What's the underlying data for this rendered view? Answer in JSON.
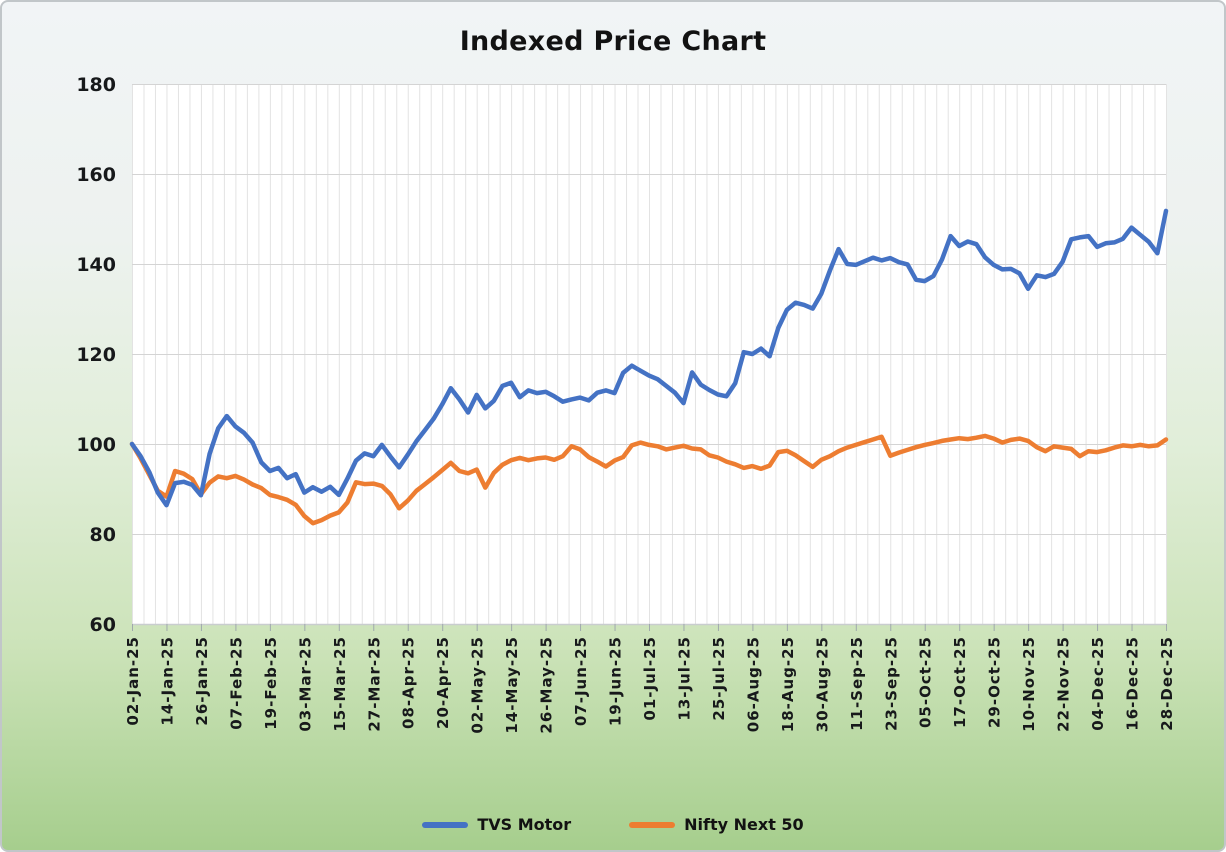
{
  "title": "Indexed Price Chart",
  "chart_data": {
    "type": "line",
    "title": "Indexed Price Chart",
    "ylim": [
      60,
      180
    ],
    "y_ticks": [
      180,
      160,
      140,
      120,
      100,
      80,
      60
    ],
    "x_total_days": 360,
    "x_days_step": 3,
    "x_label_every_days": 12,
    "x_tick_labels": [
      "02-Jan-25",
      "14-Jan-25",
      "26-Jan-25",
      "07-Feb-25",
      "19-Feb-25",
      "03-Mar-25",
      "15-Mar-25",
      "27-Mar-25",
      "08-Apr-25",
      "20-Apr-25",
      "02-May-25",
      "14-May-25",
      "26-May-25",
      "07-Jun-25",
      "19-Jun-25",
      "01-Jul-25",
      "13-Jul-25",
      "25-Jul-25",
      "06-Aug-25",
      "18-Aug-25",
      "30-Aug-25",
      "11-Sep-25",
      "23-Sep-25",
      "05-Oct-25",
      "17-Oct-25",
      "29-Oct-25",
      "10-Nov-25",
      "22-Nov-25",
      "04-Dec-25",
      "16-Dec-25",
      "28-Dec-25"
    ],
    "grid": {
      "x_minor_every_days": 4,
      "horizontal": true,
      "vertical": true
    },
    "legend_position": "bottom-center",
    "series": [
      {
        "name": "TVS Motor",
        "color": "#4472C4",
        "values": [
          100,
          97.3,
          93.8,
          89.2,
          86.4,
          91.3,
          91.6,
          90.9,
          88.6,
          97.8,
          103.5,
          106.2,
          103.9,
          102.5,
          100.3,
          95.9,
          94.0,
          94.7,
          92.4,
          93.3,
          89.2,
          90.4,
          89.4,
          90.5,
          88.7,
          92.3,
          96.3,
          97.9,
          97.3,
          99.8,
          97.2,
          94.8,
          97.6,
          100.6,
          103.1,
          105.6,
          108.8,
          112.4,
          109.9,
          107.0,
          110.9,
          107.9,
          109.6,
          112.9,
          113.6,
          110.4,
          111.9,
          111.3,
          111.6,
          110.6,
          109.4,
          109.9,
          110.3,
          109.7,
          111.4,
          111.9,
          111.3,
          115.8,
          117.4,
          116.3,
          115.2,
          114.4,
          112.9,
          111.4,
          109.1,
          115.9,
          113.2,
          112.0,
          111.0,
          110.6,
          113.5,
          120.4,
          120.0,
          121.2,
          119.5,
          125.8,
          129.8,
          131.4,
          130.9,
          130.1,
          133.4,
          138.6,
          143.3,
          140.0,
          139.8,
          140.6,
          141.4,
          140.8,
          141.3,
          140.4,
          139.9,
          136.5,
          136.2,
          137.3,
          141.0,
          146.2,
          144.0,
          145.0,
          144.4,
          141.5,
          139.8,
          138.8,
          138.9,
          137.9,
          134.5,
          137.5,
          137.1,
          137.8,
          140.5,
          145.5,
          145.9,
          146.2,
          143.8,
          144.6,
          144.8,
          145.6,
          148.1,
          146.5,
          144.9,
          142.4,
          151.8
        ]
      },
      {
        "name": "Nifty Next 50",
        "color": "#ED7D31",
        "values": [
          100,
          96.8,
          93.2,
          89.6,
          88.3,
          94.0,
          93.4,
          92.2,
          88.8,
          91.4,
          92.8,
          92.4,
          92.9,
          92.1,
          91.0,
          90.2,
          88.7,
          88.2,
          87.6,
          86.5,
          84.0,
          82.4,
          83.1,
          84.1,
          84.8,
          87.0,
          91.5,
          91.1,
          91.2,
          90.7,
          88.8,
          85.7,
          87.4,
          89.6,
          91.1,
          92.6,
          94.2,
          95.8,
          94.0,
          93.5,
          94.3,
          90.3,
          93.6,
          95.4,
          96.4,
          96.9,
          96.4,
          96.8,
          97.0,
          96.5,
          97.3,
          99.5,
          98.8,
          97.1,
          96.1,
          95.0,
          96.3,
          97.1,
          99.7,
          100.3,
          99.8,
          99.5,
          98.8,
          99.2,
          99.6,
          99.0,
          98.8,
          97.5,
          97.0,
          96.1,
          95.5,
          94.7,
          95.1,
          94.5,
          95.2,
          98.2,
          98.5,
          97.5,
          96.2,
          94.9,
          96.5,
          97.3,
          98.4,
          99.2,
          99.8,
          100.4,
          101.0,
          101.6,
          97.4,
          98.1,
          98.7,
          99.3,
          99.8,
          100.2,
          100.7,
          101.0,
          101.3,
          101.1,
          101.4,
          101.8,
          101.2,
          100.3,
          100.9,
          101.2,
          100.7,
          99.3,
          98.4,
          99.5,
          99.2,
          98.9,
          97.3,
          98.4,
          98.2,
          98.6,
          99.2,
          99.7,
          99.5,
          99.8,
          99.5,
          99.7,
          101.0
        ]
      }
    ]
  },
  "colors": {
    "plot_background": "#ffffff",
    "page_gradient_top": "#f1f4f6",
    "page_gradient_bottom": "#a6ce8d",
    "gridline_vertical": "#e3e3e3",
    "gridline_horizontal": "#d4d4d4",
    "axis_line": "#c9cdcf",
    "tick_mark": "#9fa8ac",
    "axis_text": "#17191b",
    "title_text": "#121212"
  }
}
